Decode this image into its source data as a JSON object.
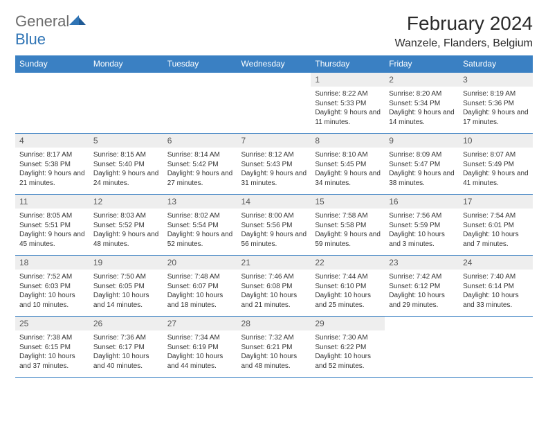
{
  "logo": {
    "general": "General",
    "blue": "Blue"
  },
  "title": "February 2024",
  "location": "Wanzele, Flanders, Belgium",
  "colors": {
    "header_bg": "#3a80c3",
    "header_text": "#ffffff",
    "daynum_bg": "#eeeeee",
    "border": "#3a80c3",
    "logo_gray": "#6a6a6a",
    "logo_blue": "#2f74b5"
  },
  "weekdays": [
    "Sunday",
    "Monday",
    "Tuesday",
    "Wednesday",
    "Thursday",
    "Friday",
    "Saturday"
  ],
  "weeks": [
    [
      null,
      null,
      null,
      null,
      {
        "n": "1",
        "sr": "8:22 AM",
        "ss": "5:33 PM",
        "dl": "9 hours and 11 minutes."
      },
      {
        "n": "2",
        "sr": "8:20 AM",
        "ss": "5:34 PM",
        "dl": "9 hours and 14 minutes."
      },
      {
        "n": "3",
        "sr": "8:19 AM",
        "ss": "5:36 PM",
        "dl": "9 hours and 17 minutes."
      }
    ],
    [
      {
        "n": "4",
        "sr": "8:17 AM",
        "ss": "5:38 PM",
        "dl": "9 hours and 21 minutes."
      },
      {
        "n": "5",
        "sr": "8:15 AM",
        "ss": "5:40 PM",
        "dl": "9 hours and 24 minutes."
      },
      {
        "n": "6",
        "sr": "8:14 AM",
        "ss": "5:42 PM",
        "dl": "9 hours and 27 minutes."
      },
      {
        "n": "7",
        "sr": "8:12 AM",
        "ss": "5:43 PM",
        "dl": "9 hours and 31 minutes."
      },
      {
        "n": "8",
        "sr": "8:10 AM",
        "ss": "5:45 PM",
        "dl": "9 hours and 34 minutes."
      },
      {
        "n": "9",
        "sr": "8:09 AM",
        "ss": "5:47 PM",
        "dl": "9 hours and 38 minutes."
      },
      {
        "n": "10",
        "sr": "8:07 AM",
        "ss": "5:49 PM",
        "dl": "9 hours and 41 minutes."
      }
    ],
    [
      {
        "n": "11",
        "sr": "8:05 AM",
        "ss": "5:51 PM",
        "dl": "9 hours and 45 minutes."
      },
      {
        "n": "12",
        "sr": "8:03 AM",
        "ss": "5:52 PM",
        "dl": "9 hours and 48 minutes."
      },
      {
        "n": "13",
        "sr": "8:02 AM",
        "ss": "5:54 PM",
        "dl": "9 hours and 52 minutes."
      },
      {
        "n": "14",
        "sr": "8:00 AM",
        "ss": "5:56 PM",
        "dl": "9 hours and 56 minutes."
      },
      {
        "n": "15",
        "sr": "7:58 AM",
        "ss": "5:58 PM",
        "dl": "9 hours and 59 minutes."
      },
      {
        "n": "16",
        "sr": "7:56 AM",
        "ss": "5:59 PM",
        "dl": "10 hours and 3 minutes."
      },
      {
        "n": "17",
        "sr": "7:54 AM",
        "ss": "6:01 PM",
        "dl": "10 hours and 7 minutes."
      }
    ],
    [
      {
        "n": "18",
        "sr": "7:52 AM",
        "ss": "6:03 PM",
        "dl": "10 hours and 10 minutes."
      },
      {
        "n": "19",
        "sr": "7:50 AM",
        "ss": "6:05 PM",
        "dl": "10 hours and 14 minutes."
      },
      {
        "n": "20",
        "sr": "7:48 AM",
        "ss": "6:07 PM",
        "dl": "10 hours and 18 minutes."
      },
      {
        "n": "21",
        "sr": "7:46 AM",
        "ss": "6:08 PM",
        "dl": "10 hours and 21 minutes."
      },
      {
        "n": "22",
        "sr": "7:44 AM",
        "ss": "6:10 PM",
        "dl": "10 hours and 25 minutes."
      },
      {
        "n": "23",
        "sr": "7:42 AM",
        "ss": "6:12 PM",
        "dl": "10 hours and 29 minutes."
      },
      {
        "n": "24",
        "sr": "7:40 AM",
        "ss": "6:14 PM",
        "dl": "10 hours and 33 minutes."
      }
    ],
    [
      {
        "n": "25",
        "sr": "7:38 AM",
        "ss": "6:15 PM",
        "dl": "10 hours and 37 minutes."
      },
      {
        "n": "26",
        "sr": "7:36 AM",
        "ss": "6:17 PM",
        "dl": "10 hours and 40 minutes."
      },
      {
        "n": "27",
        "sr": "7:34 AM",
        "ss": "6:19 PM",
        "dl": "10 hours and 44 minutes."
      },
      {
        "n": "28",
        "sr": "7:32 AM",
        "ss": "6:21 PM",
        "dl": "10 hours and 48 minutes."
      },
      {
        "n": "29",
        "sr": "7:30 AM",
        "ss": "6:22 PM",
        "dl": "10 hours and 52 minutes."
      },
      null,
      null
    ]
  ],
  "labels": {
    "sunrise": "Sunrise:",
    "sunset": "Sunset:",
    "daylight": "Daylight:"
  }
}
